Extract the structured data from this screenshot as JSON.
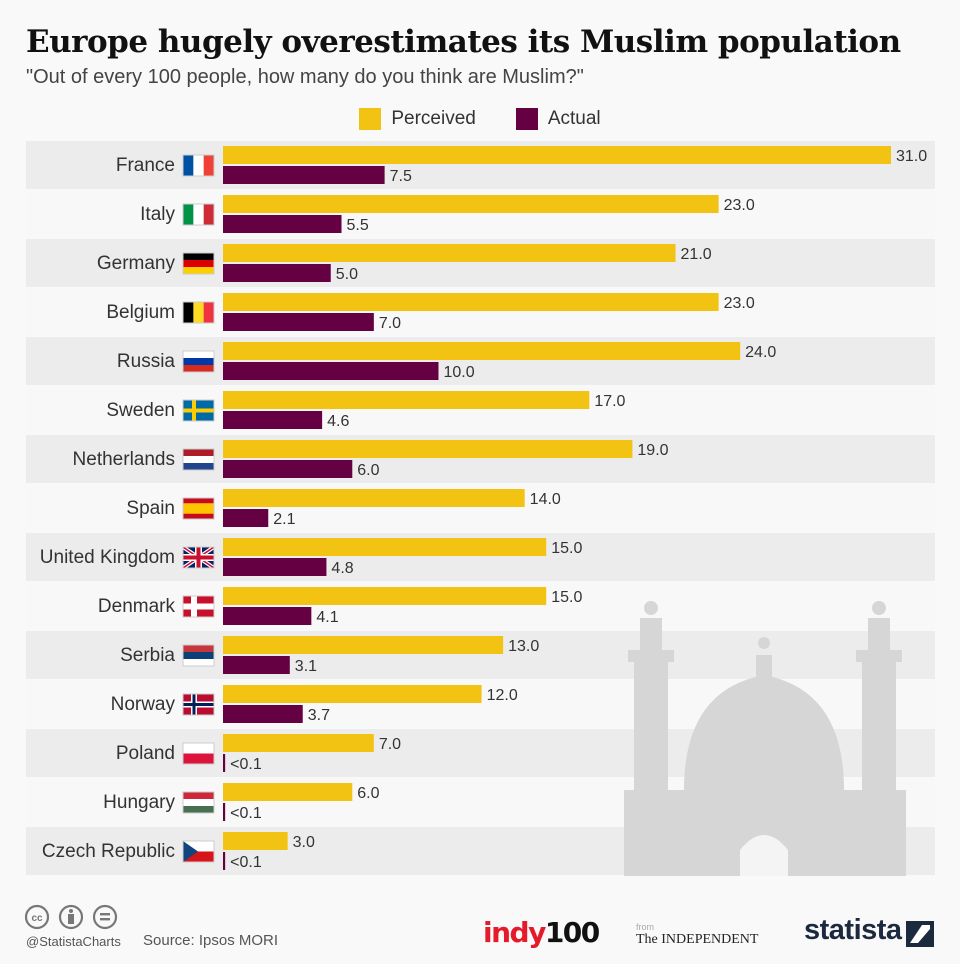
{
  "chart_data": {
    "type": "bar",
    "orientation": "horizontal",
    "title": "Europe hugely overestimates its Muslim population",
    "subtitle": "\"Out of every 100 people, how many do you think are Muslim?\"",
    "categories": [
      "France",
      "Italy",
      "Germany",
      "Belgium",
      "Russia",
      "Sweden",
      "Netherlands",
      "Spain",
      "United Kingdom",
      "Denmark",
      "Serbia",
      "Norway",
      "Poland",
      "Hungary",
      "Czech Republic"
    ],
    "series": [
      {
        "name": "Perceived",
        "color": "#f2c312",
        "values": [
          31.0,
          23.0,
          21.0,
          23.0,
          24.0,
          17.0,
          19.0,
          14.0,
          15.0,
          15.0,
          13.0,
          12.0,
          7.0,
          6.0,
          3.0
        ],
        "labels": [
          "31.0",
          "23.0",
          "21.0",
          "23.0",
          "24.0",
          "17.0",
          "19.0",
          "14.0",
          "15.0",
          "15.0",
          "13.0",
          "12.0",
          "7.0",
          "6.0",
          "3.0"
        ]
      },
      {
        "name": "Actual",
        "color": "#650043",
        "values": [
          7.5,
          5.5,
          5.0,
          7.0,
          10.0,
          4.6,
          6.0,
          2.1,
          4.8,
          4.1,
          3.1,
          3.7,
          0.1,
          0.1,
          0.1
        ],
        "labels": [
          "7.5",
          "5.5",
          "5.0",
          "7.0",
          "10.0",
          "4.6",
          "6.0",
          "2.1",
          "4.8",
          "4.1",
          "3.1",
          "3.7",
          "<0.1",
          "<0.1",
          "<0.1"
        ]
      }
    ],
    "xlim": [
      0,
      31
    ],
    "grid": false,
    "legend_placement": "top-center"
  },
  "footer": {
    "handle": "@StatistaCharts",
    "source": "Source: Ipsos MORI",
    "logo_indy": "indy100",
    "logo_from": "from",
    "logo_independent": "The INDEPENDENT",
    "logo_statista": "statista",
    "license_icons": [
      "cc-icon",
      "attribution-icon",
      "no-derivatives-icon"
    ]
  }
}
